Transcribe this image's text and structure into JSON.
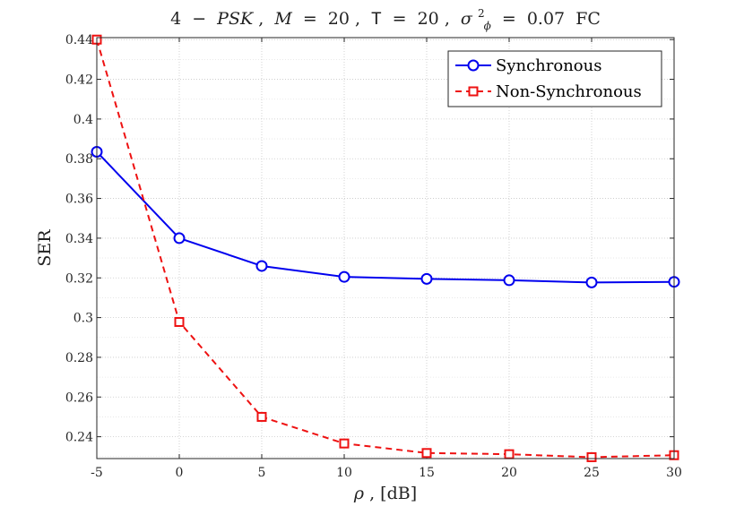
{
  "chart_data": {
    "type": "line",
    "title": {
      "prefix": "4",
      "minus": "−",
      "psk": "PSK",
      "sep1": ",",
      "m_sym": "M",
      "eq1": "=",
      "m_val": "20",
      "sep2": ",",
      "t_sym": "T",
      "eq2": "=",
      "t_val": "20",
      "sep3": ",",
      "sigma": "σ",
      "sup": "2",
      "sub": "ϕ",
      "eq3": "=",
      "sigma_val": "0.07",
      "suffix": "FC"
    },
    "xlabel": {
      "rho": "ρ",
      "unit": ", [dB]"
    },
    "ylabel": "SER",
    "xlim": [
      -5,
      30
    ],
    "ylim": [
      0.229,
      0.441
    ],
    "x": [
      -5,
      0,
      5,
      10,
      15,
      20,
      25,
      30
    ],
    "xticks": [
      "-5",
      "0",
      "5",
      "10",
      "15",
      "20",
      "25",
      "30"
    ],
    "yticks": [
      {
        "value": 0.24,
        "label": "0.24"
      },
      {
        "value": 0.26,
        "label": "0.26"
      },
      {
        "value": 0.28,
        "label": "0.28"
      },
      {
        "value": 0.3,
        "label": "0.3"
      },
      {
        "value": 0.32,
        "label": "0.32"
      },
      {
        "value": 0.34,
        "label": "0.34"
      },
      {
        "value": 0.36,
        "label": "0.36"
      },
      {
        "value": 0.38,
        "label": "0.38"
      },
      {
        "value": 0.4,
        "label": "0.4"
      },
      {
        "value": 0.42,
        "label": "0.42"
      },
      {
        "value": 0.44,
        "label": "0.44"
      }
    ],
    "minor_grid": [
      0.23,
      0.25,
      0.27,
      0.29,
      0.31,
      0.33,
      0.35,
      0.37,
      0.39,
      0.41,
      0.43
    ],
    "grid": true,
    "legend_position": "top-right",
    "series": [
      {
        "name": "Synchronous",
        "color": "#0000ee",
        "marker": "circle",
        "linestyle": "solid",
        "values": [
          0.3835,
          0.34,
          0.326,
          0.3205,
          0.3195,
          0.3188,
          0.3177,
          0.318
        ]
      },
      {
        "name": "Non-Synchronous",
        "color": "#ee1111",
        "marker": "square",
        "linestyle": "dashed",
        "values": [
          0.44,
          0.2978,
          0.25,
          0.2366,
          0.2318,
          0.2312,
          0.2297,
          0.2307
        ]
      }
    ]
  }
}
